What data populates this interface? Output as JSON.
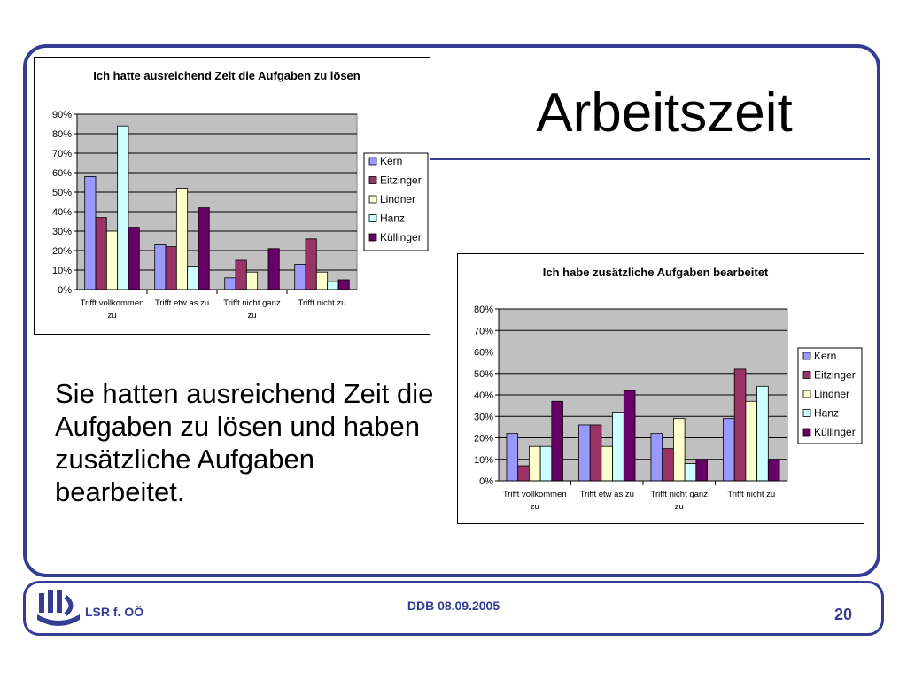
{
  "slide": {
    "title": "Arbeitszeit",
    "body_text": "Sie hatten ausreichend Zeit die Aufgaben zu lösen und haben zusätzliche Aufgaben bearbeitet."
  },
  "footer": {
    "left": "LSR f. OÖ",
    "center": "DDB 08.09.2005",
    "page": "20"
  },
  "colors": {
    "frame": "#343c94",
    "plot_bg": "#c0c0c0",
    "series": [
      "#9999ff",
      "#993366",
      "#ffffcc",
      "#ccffff",
      "#660066"
    ]
  },
  "chart_data": [
    {
      "type": "bar",
      "title": "Ich hatte ausreichend Zeit die Aufgaben zu lösen",
      "categories": [
        [
          "Trifft vollkommen",
          "zu"
        ],
        [
          "Trifft etw as zu"
        ],
        [
          "Trifft nicht ganz",
          "zu"
        ],
        [
          "Trifft nicht zu"
        ]
      ],
      "ylim": [
        0,
        90
      ],
      "yticks": [
        "0%",
        "10%",
        "20%",
        "30%",
        "40%",
        "50%",
        "60%",
        "70%",
        "80%",
        "90%"
      ],
      "legend_position": "right",
      "series": [
        {
          "name": "Kern",
          "values": [
            58,
            23,
            6,
            13
          ]
        },
        {
          "name": "Eitzinger",
          "values": [
            37,
            22,
            15,
            26
          ]
        },
        {
          "name": "Lindner",
          "values": [
            30,
            52,
            9,
            9
          ]
        },
        {
          "name": "Hanz",
          "values": [
            84,
            12,
            0,
            4
          ]
        },
        {
          "name": "Küllinger",
          "values": [
            32,
            42,
            21,
            5
          ]
        }
      ]
    },
    {
      "type": "bar",
      "title": "Ich habe zusätzliche Aufgaben bearbeitet",
      "categories": [
        [
          "Trifft vollkommen",
          "zu"
        ],
        [
          "Trifft etw as zu"
        ],
        [
          "Trifft nicht ganz",
          "zu"
        ],
        [
          "Trifft nicht zu"
        ]
      ],
      "ylim": [
        0,
        80
      ],
      "yticks": [
        "0%",
        "10%",
        "20%",
        "30%",
        "40%",
        "50%",
        "60%",
        "70%",
        "80%"
      ],
      "legend_position": "right",
      "series": [
        {
          "name": "Kern",
          "values": [
            22,
            26,
            22,
            29
          ]
        },
        {
          "name": "Eitzinger",
          "values": [
            7,
            26,
            15,
            52
          ]
        },
        {
          "name": "Lindner",
          "values": [
            16,
            16,
            29,
            37
          ]
        },
        {
          "name": "Hanz",
          "values": [
            16,
            32,
            8,
            44
          ]
        },
        {
          "name": "Küllinger",
          "values": [
            37,
            42,
            10,
            10
          ]
        }
      ]
    }
  ]
}
